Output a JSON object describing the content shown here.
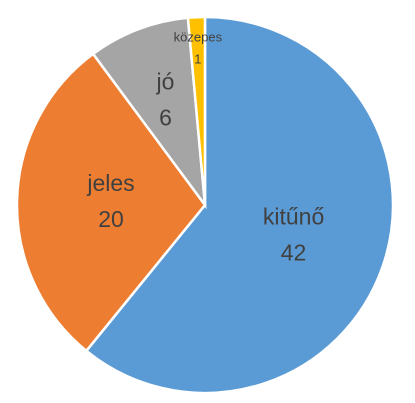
{
  "chart_data": {
    "type": "pie",
    "categories": [
      "kitűnő",
      "jeles",
      "jó",
      "közepes"
    ],
    "values": [
      42,
      20,
      6,
      1
    ],
    "colors": [
      "#5b9bd5",
      "#ed7d31",
      "#a5a5a5",
      "#ffc000"
    ],
    "start_angle": 0,
    "direction": "clockwise"
  }
}
